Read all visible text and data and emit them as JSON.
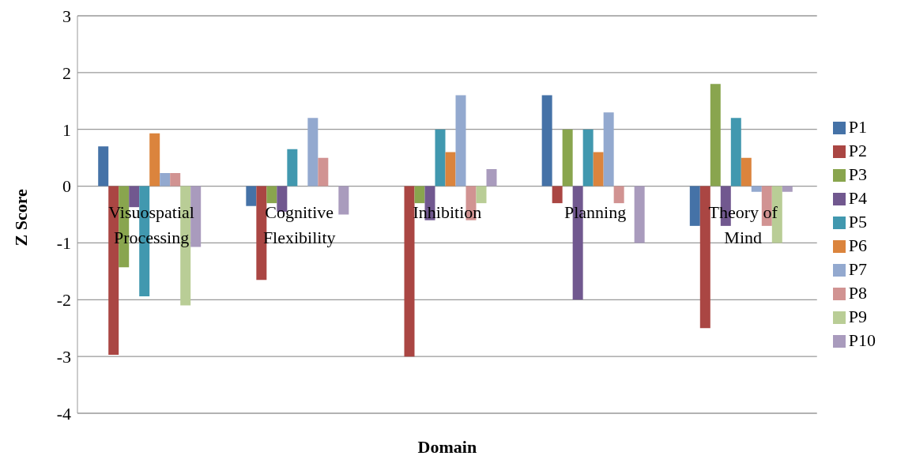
{
  "chart_data": {
    "type": "bar",
    "xlabel": "Domain",
    "ylabel": "Z Score",
    "categories": [
      "Visuospatial Processing",
      "Cognitive Flexibility",
      "Inhibition",
      "Planning",
      "Theory of Mind"
    ],
    "series": [
      {
        "name": "P1",
        "color": "#4572a7",
        "values": [
          0.7,
          -0.35,
          0,
          1.6,
          -0.7
        ]
      },
      {
        "name": "P2",
        "color": "#aa4643",
        "values": [
          -2.97,
          -1.65,
          -3.0,
          -0.3,
          -2.5
        ]
      },
      {
        "name": "P3",
        "color": "#89a54e",
        "values": [
          -1.43,
          -0.3,
          -0.3,
          1.0,
          1.8
        ]
      },
      {
        "name": "P4",
        "color": "#71588f",
        "values": [
          -0.37,
          -0.45,
          -0.6,
          -2.0,
          -0.7
        ]
      },
      {
        "name": "P5",
        "color": "#4198af",
        "values": [
          -1.94,
          0.65,
          1.0,
          1.0,
          1.2
        ]
      },
      {
        "name": "P6",
        "color": "#db843d",
        "values": [
          0.93,
          0,
          0.6,
          0.6,
          0.5
        ]
      },
      {
        "name": "P7",
        "color": "#93a9cf",
        "values": [
          0.23,
          1.2,
          1.6,
          1.3,
          -0.1
        ]
      },
      {
        "name": "P8",
        "color": "#d19392",
        "values": [
          0.23,
          0.5,
          -0.6,
          -0.3,
          -0.7
        ]
      },
      {
        "name": "P9",
        "color": "#b9cd96",
        "values": [
          -2.1,
          0,
          -0.3,
          0,
          -1.0
        ]
      },
      {
        "name": "P10",
        "color": "#a99bbd",
        "values": [
          -1.07,
          -0.5,
          0.3,
          -1.0,
          -0.1
        ]
      }
    ],
    "ylim": [
      -4,
      3
    ],
    "yticks": [
      -4,
      -3,
      -2,
      -1,
      0,
      1,
      2,
      3
    ],
    "grid": "y",
    "legend": "right"
  }
}
